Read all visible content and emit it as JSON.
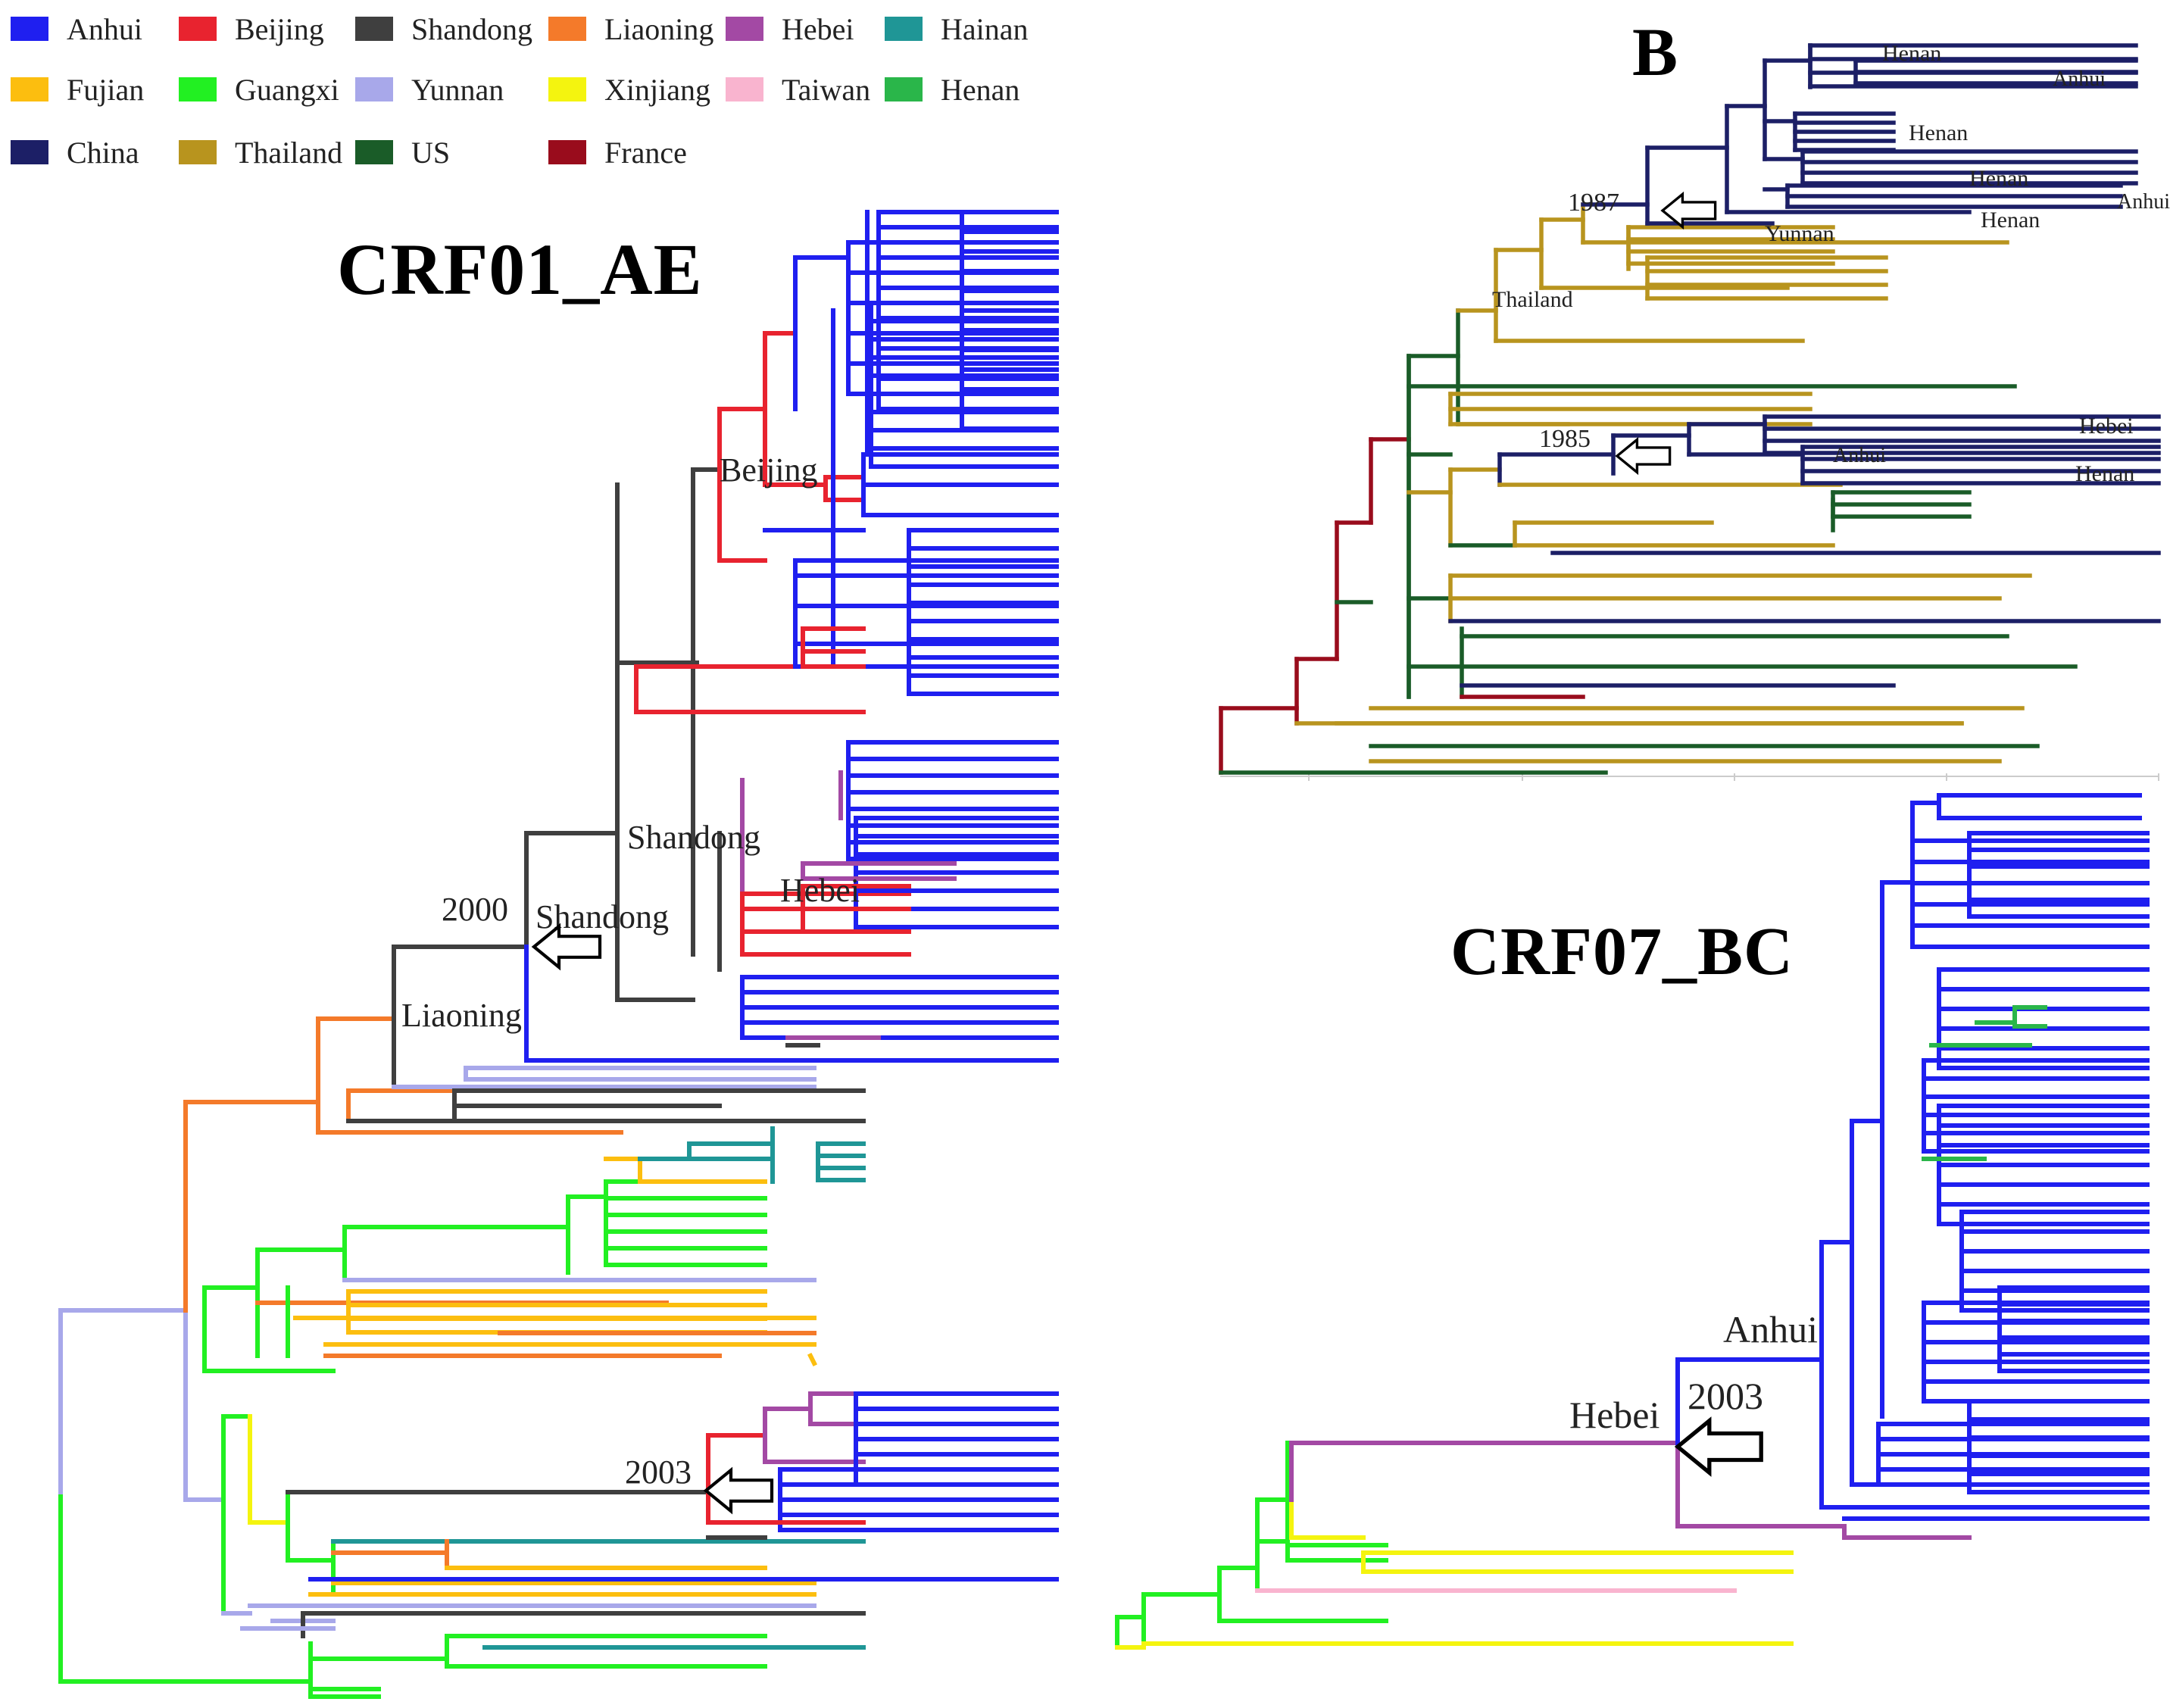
{
  "legend": [
    {
      "label": "Anhui",
      "color": "#1f1ff0"
    },
    {
      "label": "Beijing",
      "color": "#e8232f"
    },
    {
      "label": "Shandong",
      "color": "#3f3f3f"
    },
    {
      "label": "Liaoning",
      "color": "#f47a2a"
    },
    {
      "label": "Hebei",
      "color": "#a349a4"
    },
    {
      "label": "Hainan",
      "color": "#1f9696"
    },
    {
      "label": "Fujian",
      "color": "#fcbe0f"
    },
    {
      "label": "Guangxi",
      "color": "#22f022"
    },
    {
      "label": "Yunnan",
      "color": "#a8a8ea"
    },
    {
      "label": "Xinjiang",
      "color": "#f4f40f"
    },
    {
      "label": "Taiwan",
      "color": "#f9b4cf"
    },
    {
      "label": "Henan",
      "color": "#2ab64a"
    },
    {
      "label": "China",
      "color": "#1c1f66"
    },
    {
      "label": "Thailand",
      "color": "#b8941e"
    },
    {
      "label": "US",
      "color": "#1a5c28"
    },
    {
      "label": "France",
      "color": "#990c1c"
    }
  ],
  "panels": {
    "crf01": {
      "title": "CRF01_AE",
      "labels": [
        "Beijing",
        "Shandong",
        "Hebei",
        "2000",
        "Shandong",
        "Liaoning",
        "2003"
      ]
    },
    "b": {
      "title": "B",
      "labels": [
        "Henan",
        "Anhui",
        "Henan",
        "Henan",
        "Anhui",
        "Henan",
        "1987",
        "Yunnan",
        "Thailand",
        "1985",
        "Hebei",
        "Anhui",
        "Henan"
      ]
    },
    "crf07": {
      "title": "CRF07_BC",
      "labels": [
        "Anhui",
        "Hebei",
        "2003"
      ]
    }
  }
}
